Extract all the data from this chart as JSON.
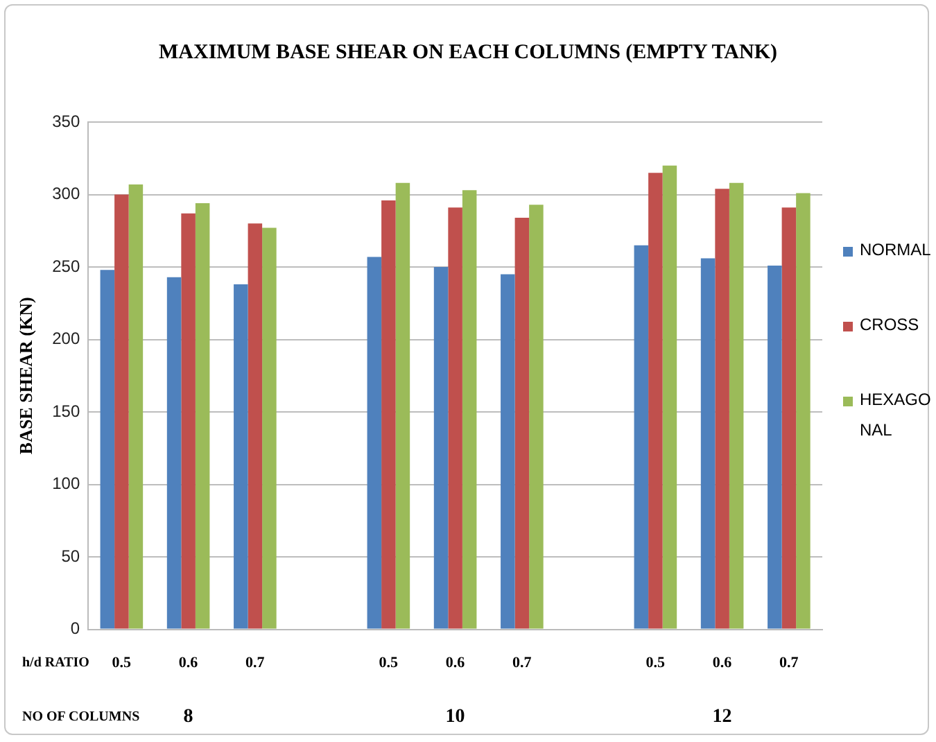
{
  "chart_data": {
    "type": "bar",
    "title": "MAXIMUM  BASE SHEAR ON EACH COLUMNS (EMPTY TANK)",
    "ylabel": "BASE SHEAR (KN)",
    "categories": [
      "0.5",
      "0.6",
      "0.7",
      null,
      "0.5",
      "0.6",
      "0.7",
      null,
      "0.5",
      "0.6",
      "0.7"
    ],
    "series": [
      {
        "name": "NORMAL",
        "color": "#4f81bd",
        "values": [
          248,
          243,
          238,
          null,
          257,
          250,
          245,
          null,
          265,
          256,
          251
        ]
      },
      {
        "name": "CROSS",
        "color": "#c0504d",
        "values": [
          300,
          287,
          280,
          null,
          296,
          291,
          284,
          null,
          315,
          304,
          291
        ]
      },
      {
        "name": "HEXAGONAL",
        "color": "#9bbb59",
        "values": [
          307,
          294,
          277,
          null,
          308,
          303,
          293,
          null,
          320,
          308,
          301
        ]
      }
    ],
    "ylim": [
      0,
      350
    ],
    "yticks": [
      0,
      50,
      100,
      150,
      200,
      250,
      300,
      350
    ],
    "grid": "y",
    "legend": "right",
    "annotations": [
      "h/d RATIO",
      "NO OF COLUMNS",
      "8",
      "10",
      "12"
    ]
  }
}
